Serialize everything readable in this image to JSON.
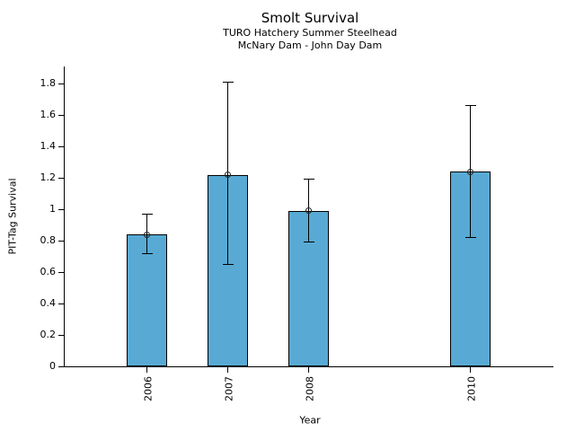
{
  "chart_data": {
    "type": "bar",
    "title": "Smolt Survival",
    "subtitle": [
      "TURO Hatchery Summer Steelhead",
      "McNary Dam - John Day Dam"
    ],
    "xlabel": "Year",
    "ylabel": "PIT-Tag Survival",
    "categories": [
      "2006",
      "2007",
      "2008",
      "2010"
    ],
    "x_years": [
      2006,
      2007,
      2008,
      2010
    ],
    "values": [
      0.84,
      1.22,
      0.99,
      1.24
    ],
    "error_low": [
      0.72,
      0.65,
      0.79,
      0.82
    ],
    "error_high": [
      0.97,
      1.81,
      1.19,
      1.66
    ],
    "y_tick_labels": [
      "0",
      "0.2",
      "0.4",
      "0.6",
      "0.8",
      "1",
      "1.2",
      "1.4",
      "1.6",
      "1.8"
    ],
    "y_tick_values": [
      0,
      0.2,
      0.4,
      0.6,
      0.8,
      1,
      1.2,
      1.4,
      1.6,
      1.8
    ],
    "ylim": [
      0,
      1.91
    ],
    "xlim_years": [
      2005,
      2011
    ],
    "grid": false,
    "legend": "none",
    "bar_color": "#58AAD4",
    "bar_edge_color": "#000000",
    "errorbar_color": "#000000",
    "marker_style": "open-circle"
  }
}
